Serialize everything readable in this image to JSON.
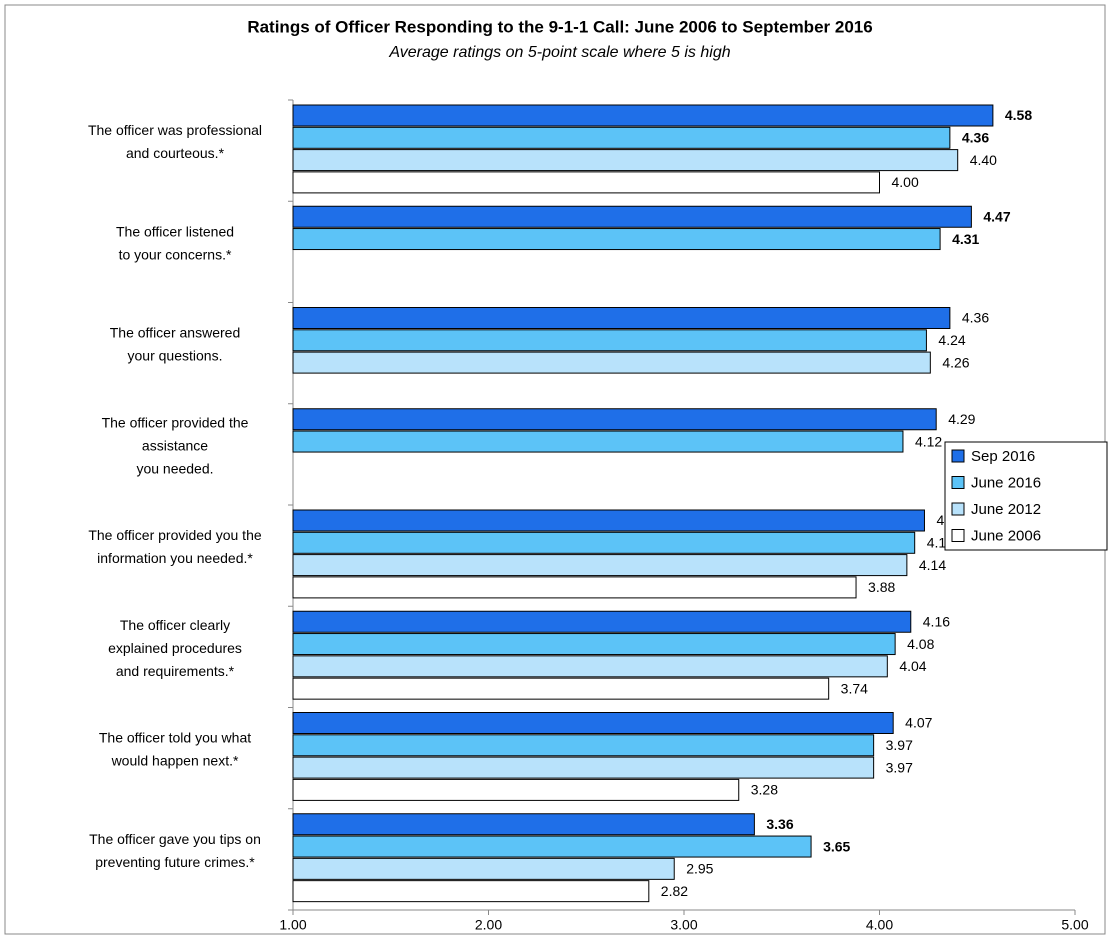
{
  "chart_data": {
    "type": "hbar",
    "title": "Ratings of Officer Responding to the 9-1-1 Call: June 2006 to September 2016",
    "subtitle": "Average ratings on 5-point scale where 5 is high",
    "categories": [
      [
        "The officer was professional",
        "and courteous.*"
      ],
      [
        "The officer listened",
        "to your concerns.*"
      ],
      [
        "The officer answered",
        "your questions."
      ],
      [
        "The officer provided the",
        "assistance",
        "you needed."
      ],
      [
        "The officer provided you the",
        "information you needed.*"
      ],
      [
        "The officer clearly",
        "explained procedures",
        "and requirements.*"
      ],
      [
        "The officer told you what",
        "would happen next.*"
      ],
      [
        "The officer gave you tips on",
        "preventing future crimes.*"
      ]
    ],
    "series": [
      {
        "name": "Sep 2016",
        "color": "#1f6fe8",
        "values": [
          4.58,
          4.47,
          4.36,
          4.29,
          4.23,
          4.16,
          4.07,
          3.36
        ],
        "value_labels": [
          "4.58",
          "4.47",
          "4.36",
          "4.29",
          "4.23",
          "4.16",
          "4.07",
          "3.36"
        ],
        "bold": [
          true,
          true,
          false,
          false,
          false,
          false,
          false,
          true
        ]
      },
      {
        "name": "June 2016",
        "color": "#5cc3f7",
        "values": [
          4.36,
          4.31,
          4.24,
          4.12,
          4.18,
          4.08,
          3.97,
          3.65
        ],
        "value_labels": [
          "4.36",
          "4.31",
          "4.24",
          "4.12",
          "4.18",
          "4.08",
          "3.97",
          "3.65"
        ],
        "bold": [
          true,
          true,
          false,
          false,
          false,
          false,
          false,
          true
        ]
      },
      {
        "name": "June 2012",
        "color": "#b8e2fb",
        "values": [
          4.4,
          null,
          4.26,
          null,
          4.14,
          4.04,
          3.97,
          2.95
        ],
        "value_labels": [
          "4.40",
          null,
          "4.26",
          null,
          "4.14",
          "4.04",
          "3.97",
          "2.95"
        ],
        "bold": [
          false,
          false,
          false,
          false,
          false,
          false,
          false,
          false
        ]
      },
      {
        "name": "June 2006",
        "color": "#ffffff",
        "values": [
          4.0,
          null,
          null,
          null,
          3.88,
          3.74,
          3.28,
          2.82
        ],
        "value_labels": [
          "4.00",
          null,
          null,
          null,
          "3.88",
          "3.74",
          "3.28",
          "2.82"
        ],
        "bold": [
          false,
          false,
          false,
          false,
          false,
          false,
          false,
          false
        ]
      }
    ],
    "xlim": [
      1,
      5
    ],
    "xticks": [
      {
        "value": 1,
        "label": "1.00"
      },
      {
        "value": 2,
        "label": "2.00"
      },
      {
        "value": 3,
        "label": "3.00"
      },
      {
        "value": 4,
        "label": "4.00"
      },
      {
        "value": 5,
        "label": "5.00"
      }
    ],
    "legend": "right"
  }
}
